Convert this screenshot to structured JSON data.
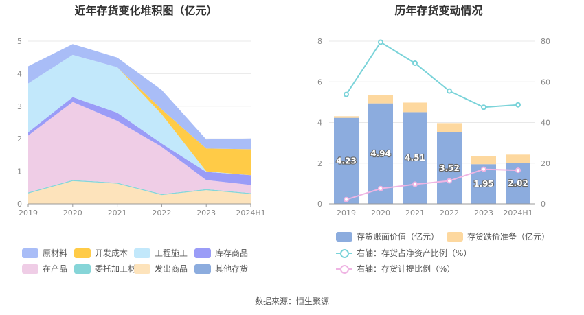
{
  "source_text": "数据来源：恒生聚源",
  "chart_data": [
    {
      "type": "area",
      "stacked": true,
      "title": "近年存货变化堆积图（亿元）",
      "categories": [
        "2019",
        "2020",
        "2021",
        "2022",
        "2023",
        "2024H1"
      ],
      "yticks": [
        "0",
        "1",
        "2",
        "3",
        "4",
        "5"
      ],
      "ylim": [
        0,
        5
      ],
      "series": [
        {
          "name": "原材料",
          "color": "#a9bdf7",
          "values": [
            0.53,
            0.33,
            0.3,
            0.6,
            0.28,
            0.33
          ]
        },
        {
          "name": "开发成本",
          "color": "#ffcb47",
          "values": [
            0,
            0,
            0,
            0.15,
            0.7,
            0.8
          ]
        },
        {
          "name": "工程施工",
          "color": "#c2e8fb",
          "values": [
            1.5,
            1.3,
            1.4,
            0.9,
            0.02,
            0
          ]
        },
        {
          "name": "库存商品",
          "color": "#9a9cf7",
          "values": [
            0.1,
            0.15,
            0.25,
            0.1,
            0.25,
            0.3
          ]
        },
        {
          "name": "在产品",
          "color": "#efcde6",
          "values": [
            1.75,
            2.4,
            1.9,
            1.45,
            0.28,
            0.25
          ]
        },
        {
          "name": "委托加工材料",
          "color": "#86d5d8",
          "values": [
            0.03,
            0.03,
            0.03,
            0.03,
            0.03,
            0.03
          ]
        },
        {
          "name": "发出商品",
          "color": "#fde3bb",
          "values": [
            0.32,
            0.7,
            0.62,
            0.27,
            0.42,
            0.3
          ]
        },
        {
          "name": "其他存货",
          "color": "#8cacde",
          "values": [
            0,
            0,
            0,
            0,
            0,
            0
          ]
        }
      ],
      "legend_position": "bottom"
    },
    {
      "type": "bar",
      "stacked": true,
      "title": "历年存货变动情况",
      "categories": [
        "2019",
        "2020",
        "2021",
        "2022",
        "2023",
        "2024H1"
      ],
      "yticks_left": [
        "0",
        "2",
        "4",
        "6",
        "8"
      ],
      "ylim_left": [
        0,
        8
      ],
      "yticks_right": [
        "0",
        "20",
        "40",
        "60",
        "80"
      ],
      "ylim_right": [
        0,
        80
      ],
      "bars": [
        {
          "name": "存货账面价值（亿元）",
          "color": "#8cacde",
          "values": [
            4.23,
            4.94,
            4.51,
            3.52,
            1.95,
            2.02
          ],
          "labels": [
            "4.23",
            "4.94",
            "4.51",
            "3.52",
            "1.95",
            "2.02"
          ]
        },
        {
          "name": "存货跌价准备（亿元）",
          "color": "#fdd89f",
          "values": [
            0.08,
            0.4,
            0.47,
            0.45,
            0.4,
            0.4
          ]
        }
      ],
      "lines": [
        {
          "name": "右轴：存货占净资产比例（%）",
          "color": "#7ad3d9",
          "values": [
            53.8,
            79.5,
            69.2,
            55.5,
            47.5,
            48.7
          ]
        },
        {
          "name": "右轴：存货计提比例（%）",
          "color": "#efb4e3",
          "values": [
            2.1,
            7.5,
            9.6,
            11.3,
            17.0,
            16.5
          ]
        }
      ],
      "legend_position": "bottom"
    }
  ]
}
